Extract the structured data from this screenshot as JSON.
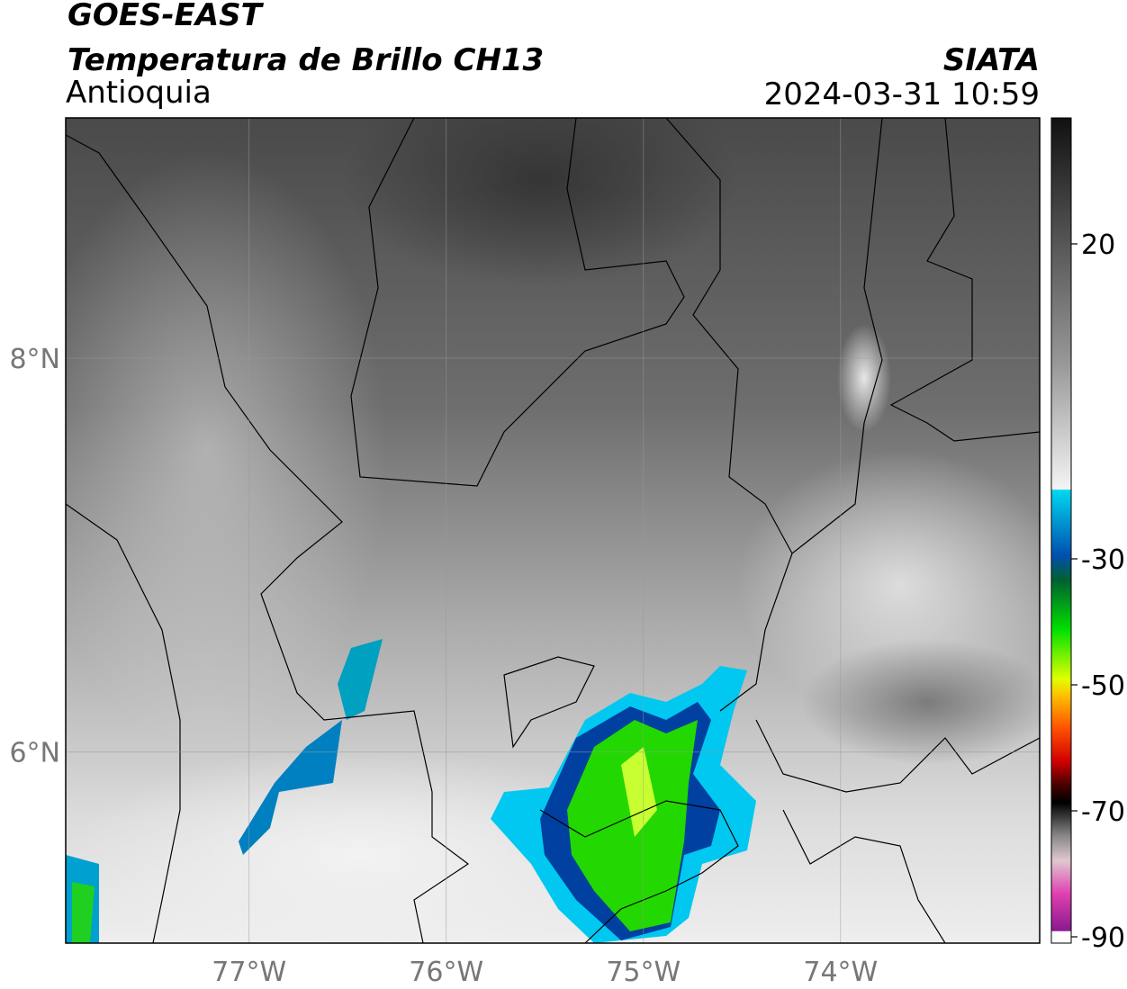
{
  "header": {
    "title": "GOES-EAST",
    "subtitle": "Temperatura de Brillo CH13",
    "region": "Antioquia",
    "source": "SIATA",
    "datetime": "2024-03-31 10:59"
  },
  "map": {
    "xlim": [
      -77.93,
      -72.99
    ],
    "ylim": [
      5.03,
      9.22
    ],
    "xticks": [
      {
        "value": -77,
        "label": "77°W"
      },
      {
        "value": -76,
        "label": "76°W"
      },
      {
        "value": -75,
        "label": "75°W"
      },
      {
        "value": -74,
        "label": "74°W"
      }
    ],
    "yticks": [
      {
        "value": 6,
        "label": "6°N"
      },
      {
        "value": 8,
        "label": "8°N"
      }
    ],
    "grid": true
  },
  "colorbar": {
    "lim": [
      -91,
      40
    ],
    "ticks": [
      20,
      -30,
      -50,
      -70,
      -90
    ]
  }
}
